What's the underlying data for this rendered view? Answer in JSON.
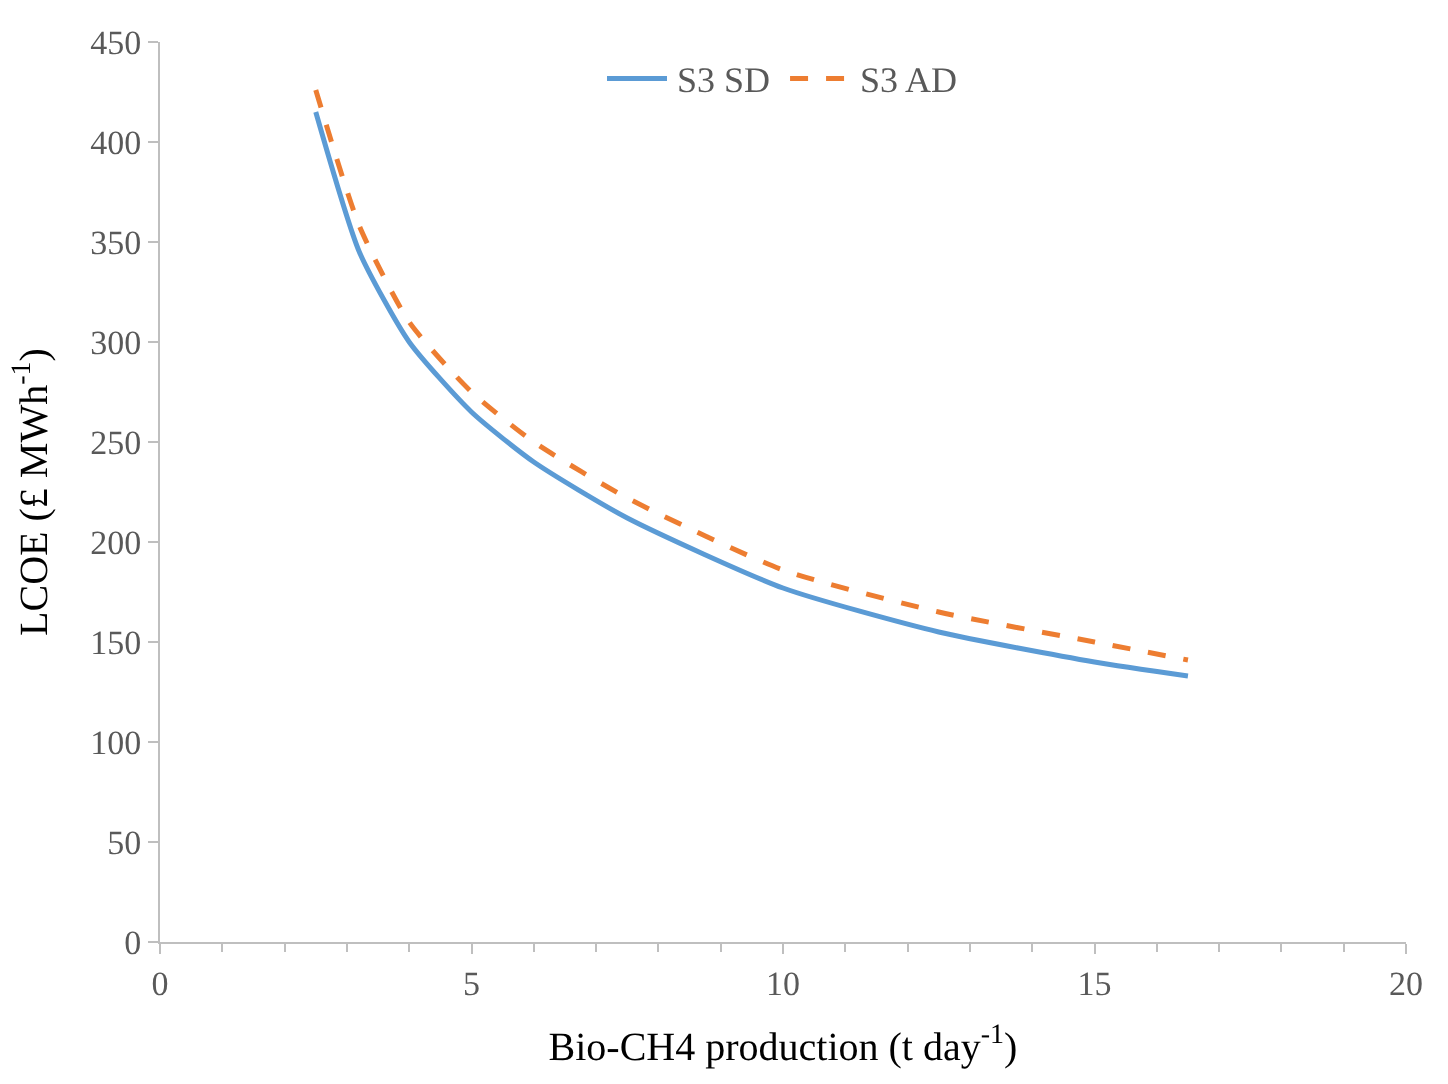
{
  "chart_data": {
    "type": "line",
    "xlabel": "Bio-CH4 production (t day$^{-1}$)",
    "ylabel": "LCOE (£ MWh$^{-1}$)",
    "xlim": [
      0,
      20
    ],
    "xticks": [
      0,
      5,
      10,
      15,
      20
    ],
    "ylim": [
      0,
      450
    ],
    "yticks": [
      0,
      50,
      100,
      150,
      200,
      250,
      300,
      350,
      400,
      450
    ],
    "legend": "top",
    "marker": "none",
    "x": [
      2.5,
      3.2,
      4,
      5,
      6,
      7.5,
      10,
      12.5,
      15,
      16.5
    ],
    "series": [
      {
        "name": "S3 SD",
        "color": "#5b9bd5",
        "line_style": "solid",
        "values": [
          415,
          345,
          300,
          265,
          240,
          212,
          177,
          155,
          140,
          133
        ]
      },
      {
        "name": "S3 AD",
        "color": "#ed7d31",
        "line_style": "dashed",
        "values": [
          426,
          358,
          310,
          275,
          250,
          222,
          186,
          165,
          150,
          141
        ]
      }
    ]
  }
}
